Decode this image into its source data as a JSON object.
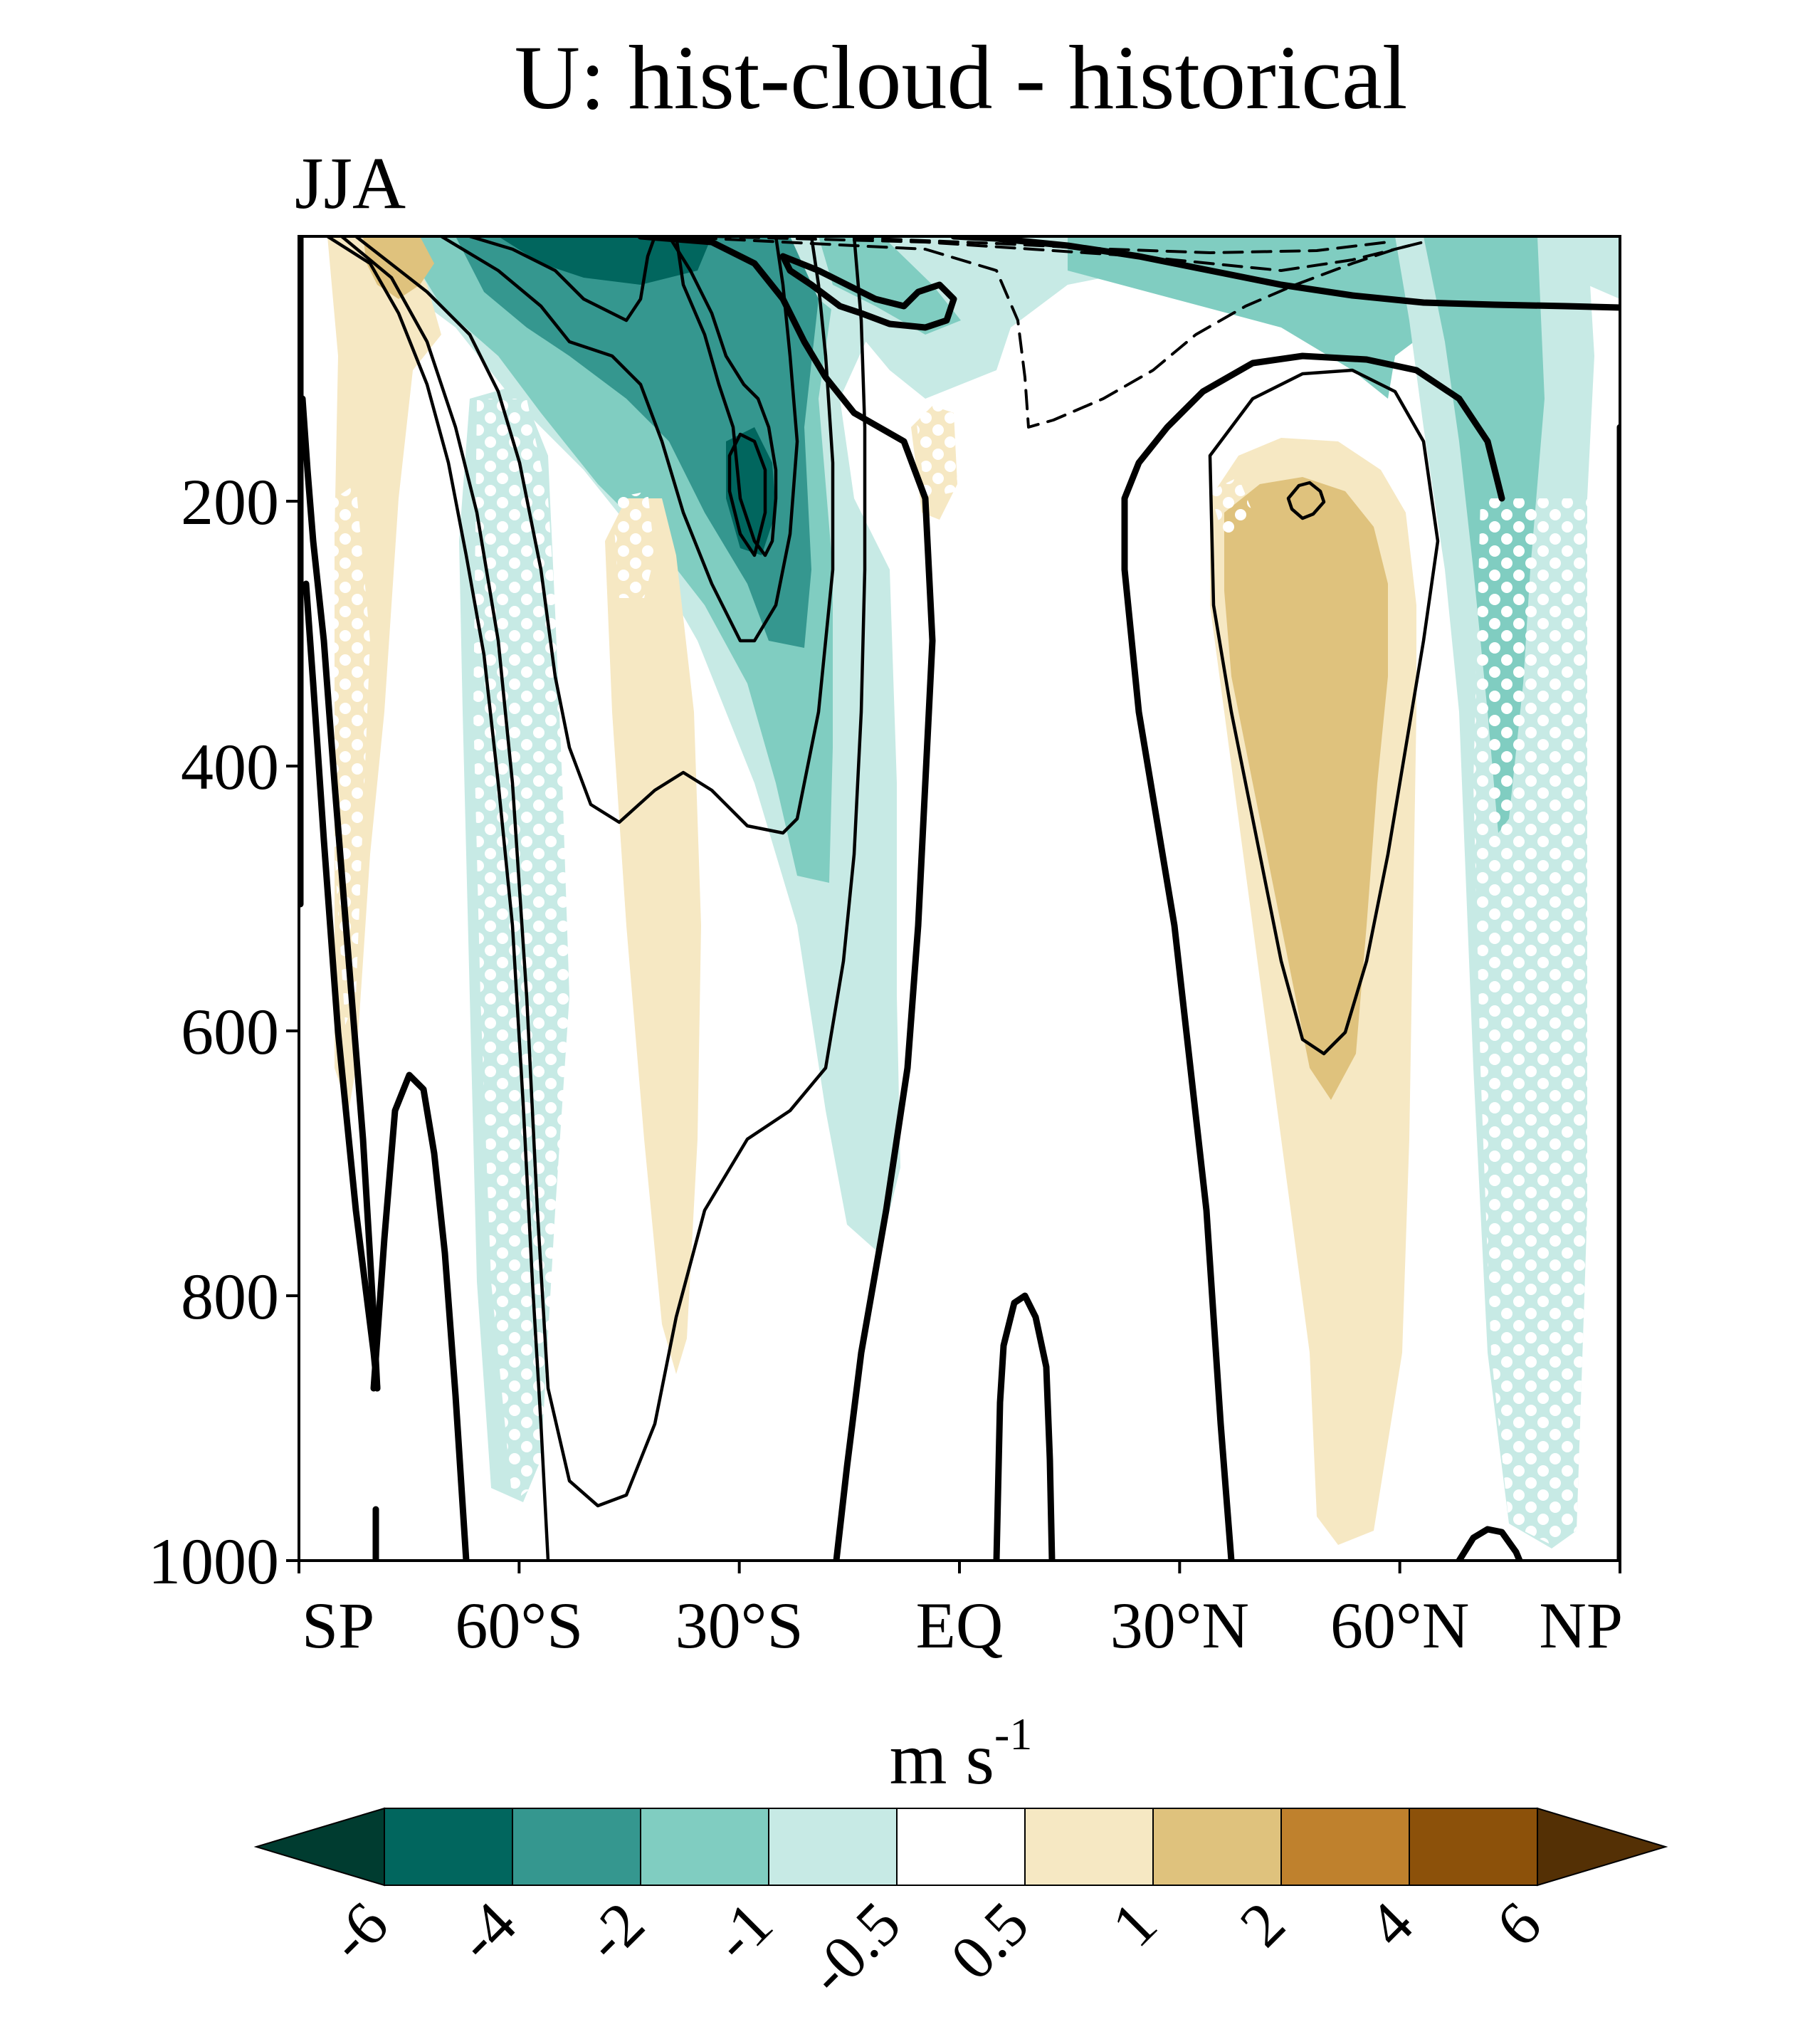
{
  "chart_data": {
    "type": "contour",
    "title": "U: hist-cloud - historical",
    "subtitle": "JJA",
    "x_axis": {
      "label": "",
      "range": [
        -90,
        90
      ],
      "ticks": [
        {
          "value": -90,
          "label": "SP"
        },
        {
          "value": -60,
          "label": "60°S"
        },
        {
          "value": -30,
          "label": "30°S"
        },
        {
          "value": 0,
          "label": "EQ"
        },
        {
          "value": 30,
          "label": "30°N"
        },
        {
          "value": 60,
          "label": "60°N"
        },
        {
          "value": 90,
          "label": "NP"
        }
      ]
    },
    "y_axis": {
      "label": "",
      "range": [
        1000,
        0
      ],
      "inverted": true,
      "ticks": [
        {
          "value": 200,
          "label": "200"
        },
        {
          "value": 400,
          "label": "400"
        },
        {
          "value": 600,
          "label": "600"
        },
        {
          "value": 800,
          "label": "800"
        },
        {
          "value": 1000,
          "label": "1000"
        }
      ]
    },
    "colorbar": {
      "label": "m s",
      "label_exponent": "-1",
      "levels": [
        "-6",
        "-4",
        "-2",
        "-1",
        "-0.5",
        "0.5",
        "1",
        "2",
        "4",
        "6"
      ],
      "colors": [
        "#003c30",
        "#01665e",
        "#35978f",
        "#80cdc1",
        "#c7eae5",
        "#ffffff",
        "#f6e8c3",
        "#dfc27d",
        "#bf812d",
        "#8c510a",
        "#543005"
      ]
    },
    "shaded_features": [
      {
        "desc": "negative anomaly SH subtropical jet core",
        "lat": -30,
        "p": 200,
        "min_level": "-4"
      },
      {
        "desc": "negative anomaly near SH upper levels",
        "lat": -55,
        "p": 10,
        "min_level": "-6"
      },
      {
        "desc": "positive anomaly NH midlatitudes",
        "lat": 48,
        "p": 300,
        "max_level": "2"
      },
      {
        "desc": "negative anomaly NH high latitudes",
        "lat": 70,
        "p": 150,
        "min_level": "-2"
      }
    ],
    "contour_overlay": {
      "desc": "climatological zonal wind; solid positive, dashed negative, thick zero line",
      "jets": [
        {
          "hemisphere": "SH",
          "lat": -30,
          "p": 200
        },
        {
          "hemisphere": "NH",
          "lat": 46,
          "p": 200
        }
      ]
    },
    "stippling": "white dots mark statistically significant regions"
  }
}
